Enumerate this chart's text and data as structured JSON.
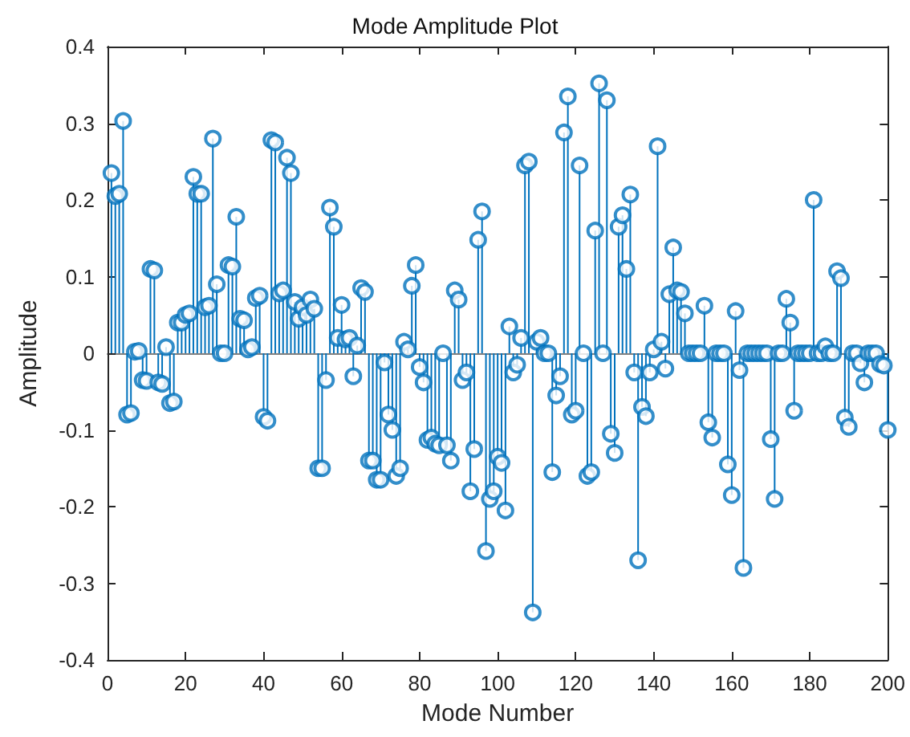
{
  "chart_data": {
    "type": "lollipop",
    "title": "Mode Amplitude Plot",
    "xlabel": "Mode Number",
    "ylabel": "Amplitude",
    "x": [
      1,
      2,
      3,
      4,
      5,
      6,
      7,
      8,
      9,
      10,
      11,
      12,
      13,
      14,
      15,
      16,
      17,
      18,
      19,
      20,
      21,
      22,
      23,
      24,
      25,
      26,
      27,
      28,
      29,
      30,
      31,
      32,
      33,
      34,
      35,
      36,
      37,
      38,
      39,
      40,
      41,
      42,
      43,
      44,
      45,
      46,
      47,
      48,
      49,
      50,
      51,
      52,
      53,
      54,
      55,
      56,
      57,
      58,
      59,
      60,
      61,
      62,
      63,
      64,
      65,
      66,
      67,
      68,
      69,
      70,
      71,
      72,
      73,
      74,
      75,
      76,
      77,
      78,
      79,
      80,
      81,
      82,
      83,
      84,
      85,
      86,
      87,
      88,
      89,
      90,
      91,
      92,
      93,
      94,
      95,
      96,
      97,
      98,
      99,
      100,
      101,
      102,
      103,
      104,
      105,
      106,
      107,
      108,
      109,
      110,
      111,
      112,
      113,
      114,
      115,
      116,
      117,
      118,
      119,
      120,
      121,
      122,
      123,
      124,
      125,
      126,
      127,
      128,
      129,
      130,
      131,
      132,
      133,
      134,
      135,
      136,
      137,
      138,
      139,
      140,
      141,
      142,
      143,
      144,
      145,
      146,
      147,
      148,
      149,
      150,
      151,
      152,
      153,
      154,
      155,
      156,
      157,
      158,
      159,
      160,
      161,
      162,
      163,
      164,
      165,
      166,
      167,
      168,
      169,
      170,
      171,
      172,
      173,
      174,
      175,
      176,
      177,
      178,
      179,
      180,
      181,
      182,
      183,
      184,
      185,
      186,
      187,
      188,
      189,
      190,
      191,
      192,
      193,
      194,
      195,
      196,
      197,
      198,
      199,
      200
    ],
    "series": [
      {
        "color": "#0072bd",
        "values": [
          0.235,
          0.205,
          0.208,
          0.303,
          -0.08,
          -0.078,
          0.002,
          0.003,
          -0.035,
          -0.036,
          0.11,
          0.108,
          -0.038,
          -0.04,
          0.008,
          -0.065,
          -0.063,
          0.04,
          0.04,
          0.05,
          0.052,
          0.23,
          0.208,
          0.208,
          0.06,
          0.062,
          0.28,
          0.09,
          0,
          0,
          0.115,
          0.113,
          0.178,
          0.045,
          0.043,
          0.005,
          0.008,
          0.072,
          0.075,
          -0.083,
          -0.088,
          0.278,
          0.275,
          0.078,
          0.082,
          0.255,
          0.235,
          0.067,
          0.045,
          0.06,
          0.05,
          0.07,
          0.058,
          -0.15,
          -0.15,
          -0.035,
          0.19,
          0.165,
          0.02,
          0.063,
          0.018,
          0.02,
          -0.03,
          0.01,
          0.085,
          0.08,
          -0.14,
          -0.14,
          -0.165,
          -0.165,
          -0.012,
          -0.08,
          -0.1,
          -0.16,
          -0.15,
          0.015,
          0.005,
          0.088,
          0.115,
          -0.018,
          -0.038,
          -0.113,
          -0.11,
          -0.118,
          -0.12,
          0,
          -0.12,
          -0.14,
          0.082,
          0.07,
          -0.035,
          -0.025,
          -0.18,
          -0.125,
          0.148,
          0.185,
          -0.258,
          -0.19,
          -0.18,
          -0.135,
          -0.143,
          -0.205,
          0.035,
          -0.025,
          -0.015,
          0.02,
          0.245,
          0.25,
          -0.338,
          0.015,
          0.02,
          0,
          0,
          -0.155,
          -0.055,
          -0.03,
          0.288,
          0.335,
          -0.08,
          -0.075,
          0.245,
          0,
          -0.16,
          -0.155,
          0.16,
          0.352,
          0,
          0.33,
          -0.105,
          -0.13,
          0.165,
          0.18,
          0.11,
          0.207,
          -0.025,
          -0.27,
          -0.07,
          -0.082,
          -0.025,
          0.005,
          0.27,
          0.015,
          -0.02,
          0.077,
          0.138,
          0.082,
          0.08,
          0.052,
          0,
          0,
          0,
          0,
          0.062,
          -0.09,
          -0.11,
          0,
          0,
          0,
          -0.145,
          -0.185,
          0.055,
          -0.022,
          -0.28,
          0,
          0,
          0,
          0,
          0,
          0,
          -0.112,
          -0.19,
          0,
          0,
          0.071,
          0.04,
          -0.075,
          0,
          0,
          0,
          0,
          0.2,
          0,
          0,
          0.009,
          0,
          0,
          0.107,
          0.098,
          -0.084,
          -0.096,
          0,
          0,
          -0.013,
          -0.038,
          0,
          0,
          0,
          -0.014,
          -0.016,
          -0.1
        ]
      }
    ],
    "xlim": [
      0,
      200
    ],
    "xticks": [
      0,
      20,
      40,
      60,
      80,
      100,
      120,
      140,
      160,
      180,
      200
    ],
    "ylim": [
      -0.4,
      0.4
    ],
    "yticks": [
      -0.4,
      -0.3,
      -0.2,
      -0.1,
      0,
      0.1,
      0.2,
      0.3,
      0.4
    ],
    "marker": "circle"
  }
}
